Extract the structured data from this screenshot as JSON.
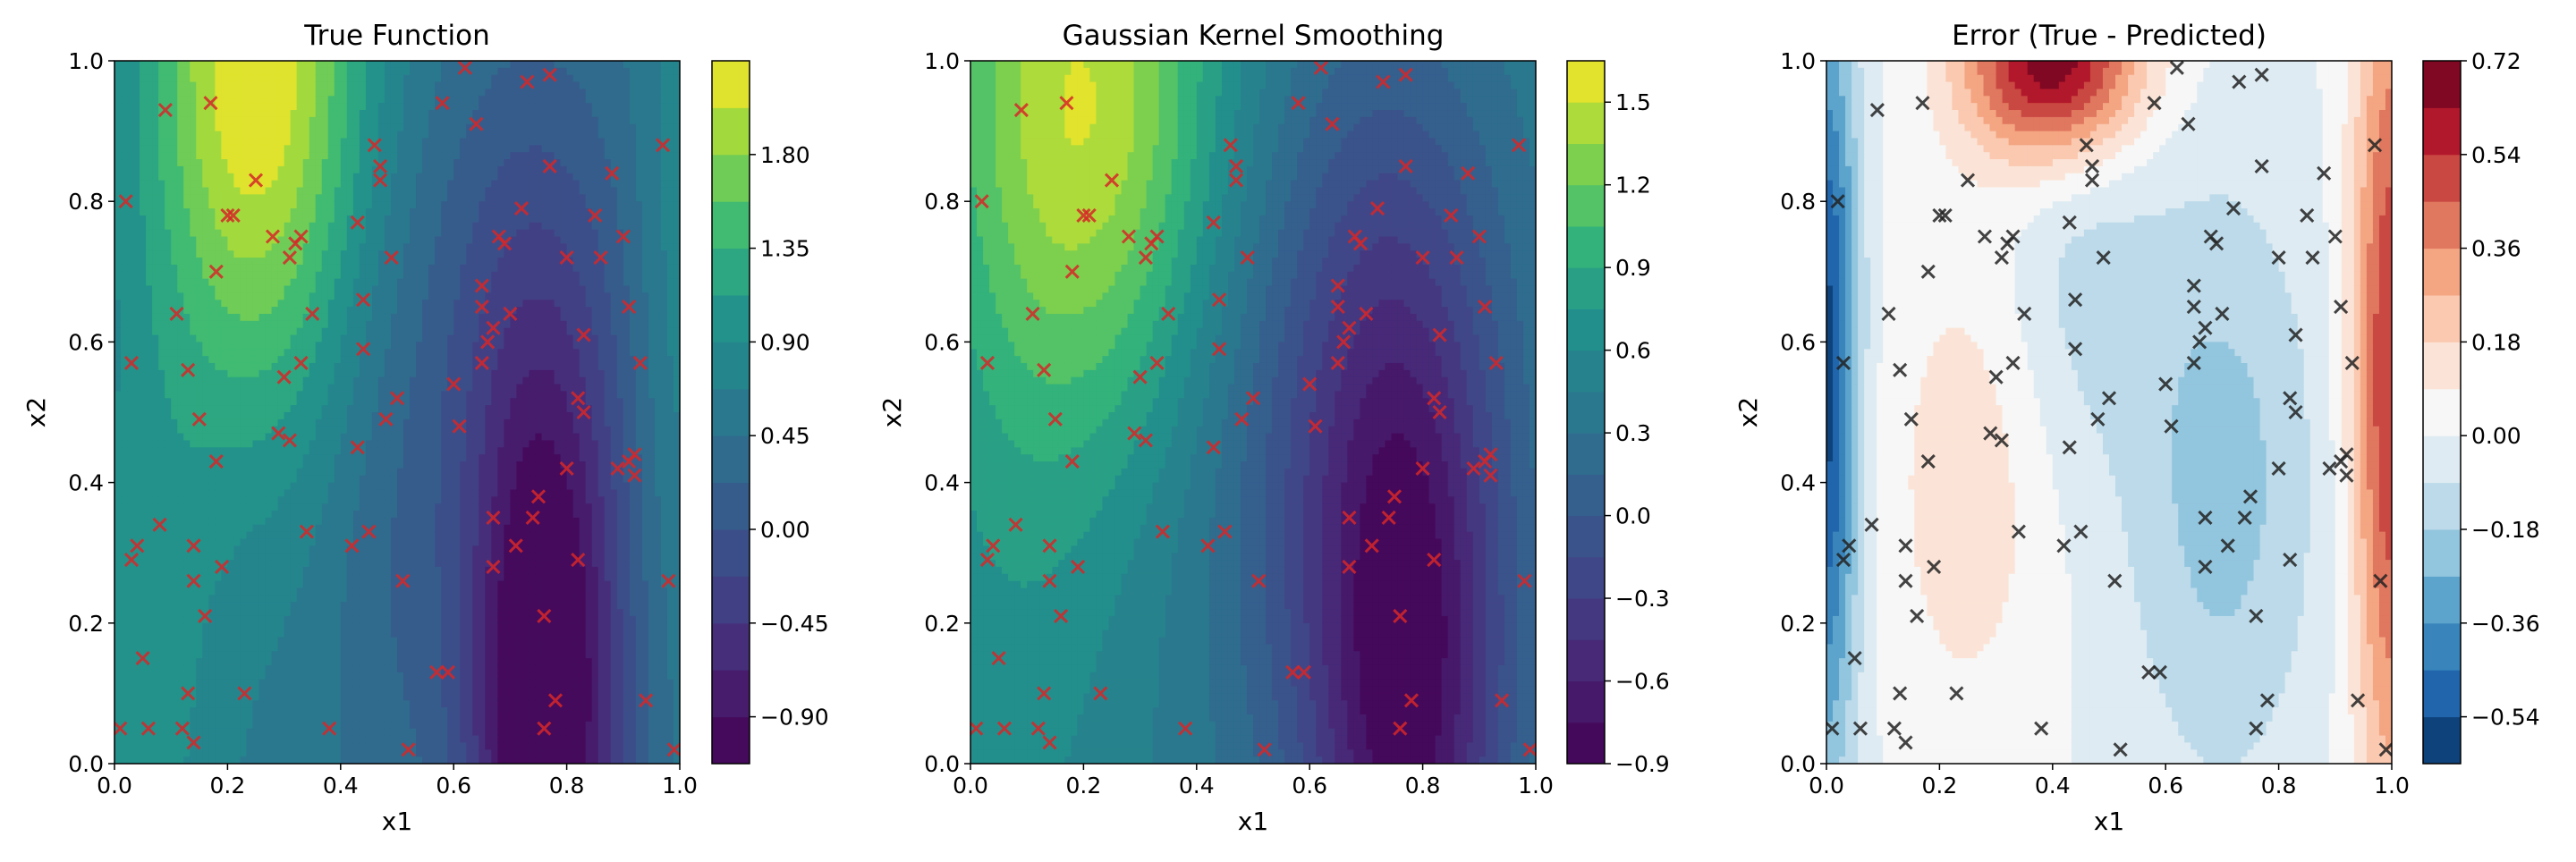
{
  "chart_data": [
    {
      "type": "heatmap",
      "title": "True Function",
      "xlabel": "x1",
      "ylabel": "x2",
      "xlim": [
        0,
        1
      ],
      "ylim": [
        0,
        1
      ],
      "xticks": [
        "0.0",
        "0.2",
        "0.4",
        "0.6",
        "0.8",
        "1.0"
      ],
      "yticks": [
        "0.0",
        "0.2",
        "0.4",
        "0.6",
        "0.8",
        "1.0"
      ],
      "colormap": "viridis",
      "colorbar": {
        "range": [
          -1.125,
          2.25
        ],
        "levels": 15,
        "ticks": [
          -0.9,
          -0.45,
          0.0,
          0.45,
          0.9,
          1.35,
          1.8
        ],
        "tick_labels": [
          "−0.90",
          "−0.45",
          "0.00",
          "0.45",
          "0.90",
          "1.35",
          "1.80"
        ]
      },
      "marker": {
        "symbol": "x",
        "color": "#d62728"
      }
    },
    {
      "type": "heatmap",
      "title": "Gaussian Kernel Smoothing",
      "xlabel": "x1",
      "ylabel": "x2",
      "xlim": [
        0,
        1
      ],
      "ylim": [
        0,
        1
      ],
      "xticks": [
        "0.0",
        "0.2",
        "0.4",
        "0.6",
        "0.8",
        "1.0"
      ],
      "yticks": [
        "0.0",
        "0.2",
        "0.4",
        "0.6",
        "0.8",
        "1.0"
      ],
      "colormap": "viridis",
      "colorbar": {
        "range": [
          -0.9,
          1.65
        ],
        "levels": 17,
        "ticks": [
          -0.9,
          -0.6,
          -0.3,
          0.0,
          0.3,
          0.6,
          0.9,
          1.2,
          1.5
        ],
        "tick_labels": [
          "−0.9",
          "−0.6",
          "−0.3",
          "0.0",
          "0.3",
          "0.6",
          "0.9",
          "1.2",
          "1.5"
        ]
      },
      "marker": {
        "symbol": "x",
        "color": "#d62728"
      }
    },
    {
      "type": "heatmap",
      "title": "Error (True - Predicted)",
      "xlabel": "x1",
      "ylabel": "x2",
      "xlim": [
        0,
        1
      ],
      "ylim": [
        0,
        1
      ],
      "xticks": [
        "0.0",
        "0.2",
        "0.4",
        "0.6",
        "0.8",
        "1.0"
      ],
      "yticks": [
        "0.0",
        "0.2",
        "0.4",
        "0.6",
        "0.8",
        "1.0"
      ],
      "colormap": "RdBu_r",
      "colorbar": {
        "range": [
          -0.63,
          0.72
        ],
        "levels": 15,
        "ticks": [
          -0.54,
          -0.36,
          -0.18,
          0.0,
          0.18,
          0.36,
          0.54,
          0.72
        ],
        "tick_labels": [
          "−0.54",
          "−0.36",
          "−0.18",
          "0.00",
          "0.18",
          "0.36",
          "0.54",
          "0.72"
        ]
      },
      "marker": {
        "symbol": "x",
        "color": "#222222"
      }
    }
  ],
  "sample_points": [
    [
      0.01,
      0.05
    ],
    [
      0.02,
      0.8
    ],
    [
      0.03,
      0.57
    ],
    [
      0.03,
      0.29
    ],
    [
      0.04,
      0.31
    ],
    [
      0.05,
      0.15
    ],
    [
      0.06,
      0.05
    ],
    [
      0.08,
      0.34
    ],
    [
      0.09,
      0.93
    ],
    [
      0.11,
      0.64
    ],
    [
      0.12,
      0.05
    ],
    [
      0.13,
      0.1
    ],
    [
      0.13,
      0.56
    ],
    [
      0.14,
      0.26
    ],
    [
      0.14,
      0.31
    ],
    [
      0.14,
      0.03
    ],
    [
      0.15,
      0.49
    ],
    [
      0.16,
      0.21
    ],
    [
      0.17,
      0.94
    ],
    [
      0.18,
      0.7
    ],
    [
      0.18,
      0.43
    ],
    [
      0.19,
      0.28
    ],
    [
      0.2,
      0.78
    ],
    [
      0.21,
      0.78
    ],
    [
      0.23,
      0.1
    ],
    [
      0.25,
      0.83
    ],
    [
      0.28,
      0.75
    ],
    [
      0.29,
      0.47
    ],
    [
      0.3,
      0.55
    ],
    [
      0.31,
      0.46
    ],
    [
      0.31,
      0.72
    ],
    [
      0.32,
      0.74
    ],
    [
      0.33,
      0.57
    ],
    [
      0.33,
      0.75
    ],
    [
      0.34,
      0.33
    ],
    [
      0.35,
      0.64
    ],
    [
      0.38,
      0.05
    ],
    [
      0.42,
      0.31
    ],
    [
      0.43,
      0.77
    ],
    [
      0.43,
      0.45
    ],
    [
      0.44,
      0.66
    ],
    [
      0.44,
      0.59
    ],
    [
      0.45,
      0.33
    ],
    [
      0.46,
      0.88
    ],
    [
      0.47,
      0.83
    ],
    [
      0.47,
      0.85
    ],
    [
      0.48,
      0.49
    ],
    [
      0.49,
      0.72
    ],
    [
      0.5,
      0.52
    ],
    [
      0.51,
      0.26
    ],
    [
      0.52,
      0.02
    ],
    [
      0.57,
      0.13
    ],
    [
      0.58,
      0.94
    ],
    [
      0.59,
      0.13
    ],
    [
      0.6,
      0.54
    ],
    [
      0.61,
      0.48
    ],
    [
      0.62,
      0.99
    ],
    [
      0.64,
      0.91
    ],
    [
      0.65,
      0.68
    ],
    [
      0.65,
      0.65
    ],
    [
      0.65,
      0.57
    ],
    [
      0.66,
      0.6
    ],
    [
      0.67,
      0.62
    ],
    [
      0.67,
      0.35
    ],
    [
      0.67,
      0.28
    ],
    [
      0.68,
      0.75
    ],
    [
      0.69,
      0.74
    ],
    [
      0.7,
      0.64
    ],
    [
      0.71,
      0.31
    ],
    [
      0.72,
      0.79
    ],
    [
      0.73,
      0.97
    ],
    [
      0.74,
      0.35
    ],
    [
      0.75,
      0.38
    ],
    [
      0.76,
      0.05
    ],
    [
      0.76,
      0.21
    ],
    [
      0.77,
      0.98
    ],
    [
      0.77,
      0.85
    ],
    [
      0.78,
      0.09
    ],
    [
      0.8,
      0.72
    ],
    [
      0.8,
      0.42
    ],
    [
      0.82,
      0.52
    ],
    [
      0.82,
      0.29
    ],
    [
      0.83,
      0.5
    ],
    [
      0.83,
      0.61
    ],
    [
      0.85,
      0.78
    ],
    [
      0.86,
      0.72
    ],
    [
      0.88,
      0.84
    ],
    [
      0.89,
      0.42
    ],
    [
      0.9,
      0.75
    ],
    [
      0.91,
      0.65
    ],
    [
      0.91,
      0.43
    ],
    [
      0.92,
      0.44
    ],
    [
      0.92,
      0.41
    ],
    [
      0.93,
      0.57
    ],
    [
      0.94,
      0.09
    ],
    [
      0.97,
      0.88
    ],
    [
      0.98,
      0.26
    ],
    [
      0.99,
      0.02
    ]
  ]
}
